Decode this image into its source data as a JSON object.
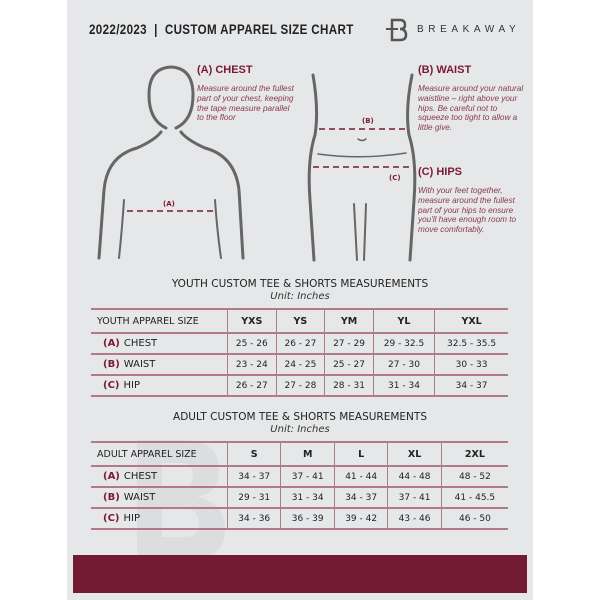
{
  "header": {
    "title": "2022/2023  |  CUSTOM APPAREL SIZE CHART",
    "brand": "BREAKAWAY"
  },
  "colors": {
    "accent": "#731c31",
    "background": "#e6e7e8"
  },
  "guide": {
    "chest": {
      "title": "(A) CHEST",
      "marker": "(A)",
      "text": "Measure around the fullest part of your chest, keeping the tape measure parallel to the floor"
    },
    "waist": {
      "title": "(B) WAIST",
      "marker": "(B)",
      "text": "Measure around your natural waistline – right above your hips. Be careful not to squeeze too tight to allow a little give."
    },
    "hips": {
      "title": "(C) HIPS",
      "marker": "(C)",
      "text": "With your feet together, measure around the fullest part of your hips to ensure you'll have enough room to move comfortably."
    }
  },
  "youth": {
    "title": "YOUTH CUSTOM TEE & SHORTS MEASUREMENTS",
    "unit": "Unit: Inches",
    "header": [
      "YOUTH APPAREL SIZE",
      "YXS",
      "YS",
      "YM",
      "YL",
      "YXL"
    ],
    "rows": [
      {
        "code": "(A)",
        "label": "CHEST",
        "values": [
          "25 - 26",
          "26 - 27",
          "27 - 29",
          "29 - 32.5",
          "32.5 - 35.5"
        ]
      },
      {
        "code": "(B)",
        "label": "WAIST",
        "values": [
          "23 - 24",
          "24 - 25",
          "25 - 27",
          "27 - 30",
          "30 - 33"
        ]
      },
      {
        "code": "(C)",
        "label": "HIP",
        "values": [
          "26 - 27",
          "27 - 28",
          "28 - 31",
          "31 - 34",
          "34 - 37"
        ]
      }
    ]
  },
  "adult": {
    "title": "ADULT CUSTOM TEE & SHORTS MEASUREMENTS",
    "unit": "Unit: Inches",
    "header": [
      "ADULT APPAREL SIZE",
      "S",
      "M",
      "L",
      "XL",
      "2XL"
    ],
    "rows": [
      {
        "code": "(A)",
        "label": "CHEST",
        "values": [
          "34 - 37",
          "37 - 41",
          "41 - 44",
          "44 - 48",
          "48 - 52"
        ]
      },
      {
        "code": "(B)",
        "label": "WAIST",
        "values": [
          "29 - 31",
          "31 - 34",
          "34 - 37",
          "37 - 41",
          "41 - 45.5"
        ]
      },
      {
        "code": "(C)",
        "label": "HIP",
        "values": [
          "34 - 36",
          "36 - 39",
          "39 - 42",
          "43 - 46",
          "46 - 50"
        ]
      }
    ]
  }
}
